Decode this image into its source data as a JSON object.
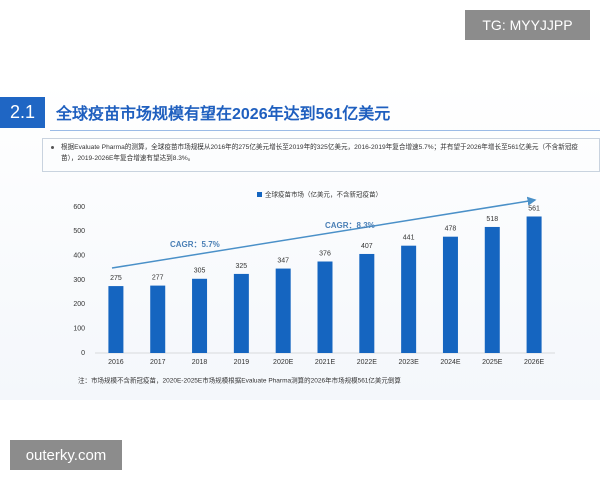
{
  "watermark_top": "TG: MYYJJPP",
  "section_number": "2.1",
  "title": "全球疫苗市场规模有望在2026年达到561亿美元",
  "bullet": "根据Evaluate Pharma的测算，全球疫苗市场规模从2016年的275亿美元增长至2019年的325亿美元，2016-2019年复合增速5.7%；并有望于2026年增长至561亿美元（不含新冠疫苗），2019-2026E年复合增速有望达到8.3%。",
  "chart_data": {
    "type": "bar",
    "categories": [
      "2016",
      "2017",
      "2018",
      "2019",
      "2020E",
      "2021E",
      "2022E",
      "2023E",
      "2024E",
      "2025E",
      "2026E"
    ],
    "series": [
      {
        "name": "全球疫苗市场（亿美元，不含新冠疫苗）",
        "color": "#1565c0",
        "values": [
          275,
          277,
          305,
          325,
          347,
          376,
          407,
          441,
          478,
          518,
          561
        ]
      }
    ],
    "ylim": [
      0,
      600
    ],
    "yticks": [
      0,
      100,
      200,
      300,
      400,
      500,
      600
    ],
    "annotations": [
      "CAGR：5.7%",
      "CAGR：8.3%"
    ]
  },
  "note": "注：市场规模不含新冠疫苗，2020E-2025E市场规模根据Evaluate Pharma测算的2026年市场规模561亿美元倒算",
  "watermark_bottom": "outerky.com"
}
